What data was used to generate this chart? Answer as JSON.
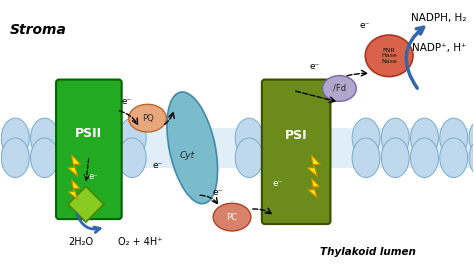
{
  "background_color": "#ffffff",
  "psii_color": "#22aa22",
  "psii_dark": "#006600",
  "psi_color": "#6b8c1a",
  "psi_dark": "#3a5000",
  "cyt_color": "#7bbccc",
  "cyt_dark": "#4488aa",
  "pq_color": "#e8a87c",
  "pq_dark": "#bb6633",
  "pc_color": "#d9826a",
  "pc_dark": "#aa4422",
  "fd_color": "#b0a8cc",
  "fd_dark": "#7766aa",
  "fnr_color": "#d9634a",
  "fnr_dark": "#aa3322",
  "mem_sphere_color": "#c0d8ee",
  "mem_sphere_edge": "#7aabcc",
  "lightning_color": "#ffee00",
  "lightning_edge": "#cc8800",
  "diamond_color": "#88cc22",
  "diamond_edge": "#448800",
  "arrow_blue": "#3366aa",
  "arrow_dark": "#222222",
  "stroma_label": "Stroma",
  "lumen_label": "Thylakoid lumen",
  "psii_label": "PSII",
  "psi_label": "PSI",
  "cyt_label": "Cyt",
  "pq_label": "PQ",
  "pc_label": "PC",
  "fd_label": "/Fd",
  "fnr_label": "FNR\nHase\nNase",
  "water_label": "2H₂O",
  "oxygen_label": "O₂ + 4H⁺",
  "nadph_label": "NADPH, H₂",
  "nadp_label": "NADP⁺, H⁺",
  "e_minus": "e⁻"
}
